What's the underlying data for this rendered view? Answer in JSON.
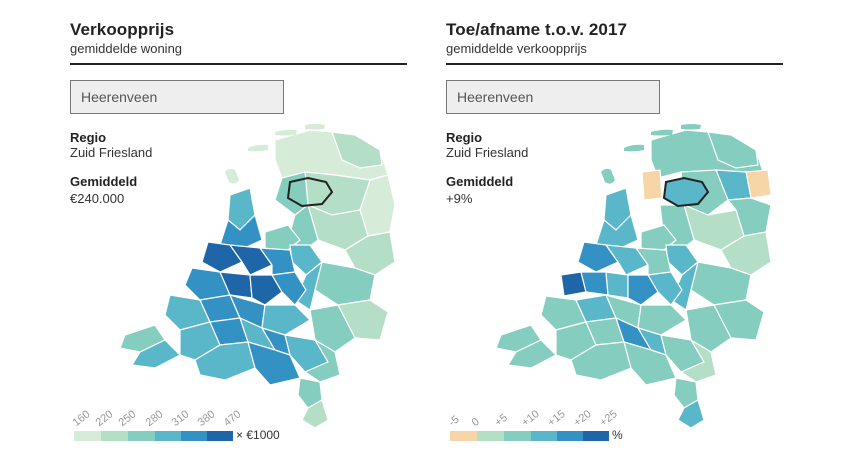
{
  "left_panel": {
    "title": "Verkoopprijs",
    "subtitle": "gemiddelde woning",
    "search_value": "Heerenveen",
    "region_label": "Regio",
    "region_value": "Zuid Friesland",
    "average_label": "Gemiddeld",
    "average_value": "€240.000",
    "legend": {
      "ticks": [
        "160",
        "220",
        "250",
        "280",
        "310",
        "380",
        "470"
      ],
      "colors": [
        "#d6ecd8",
        "#b4dfc6",
        "#85cdbf",
        "#5ab6c9",
        "#3491c4",
        "#1f66a8"
      ],
      "unit": "× €1000"
    }
  },
  "right_panel": {
    "title": "Toe/afname t.o.v. 2017",
    "subtitle": "gemiddelde verkoopprijs",
    "search_value": "Heerenveen",
    "region_label": "Regio",
    "region_value": "Zuid Friesland",
    "average_label": "Gemiddeld",
    "average_value": "+9%",
    "legend": {
      "ticks": [
        "-5",
        "0",
        "+5",
        "+10",
        "+15",
        "+20",
        "+25"
      ],
      "colors": [
        "#f6d5a6",
        "#b4dfc6",
        "#85cdbf",
        "#5ab6c9",
        "#3491c4",
        "#1f66a8"
      ],
      "unit": "%"
    }
  }
}
